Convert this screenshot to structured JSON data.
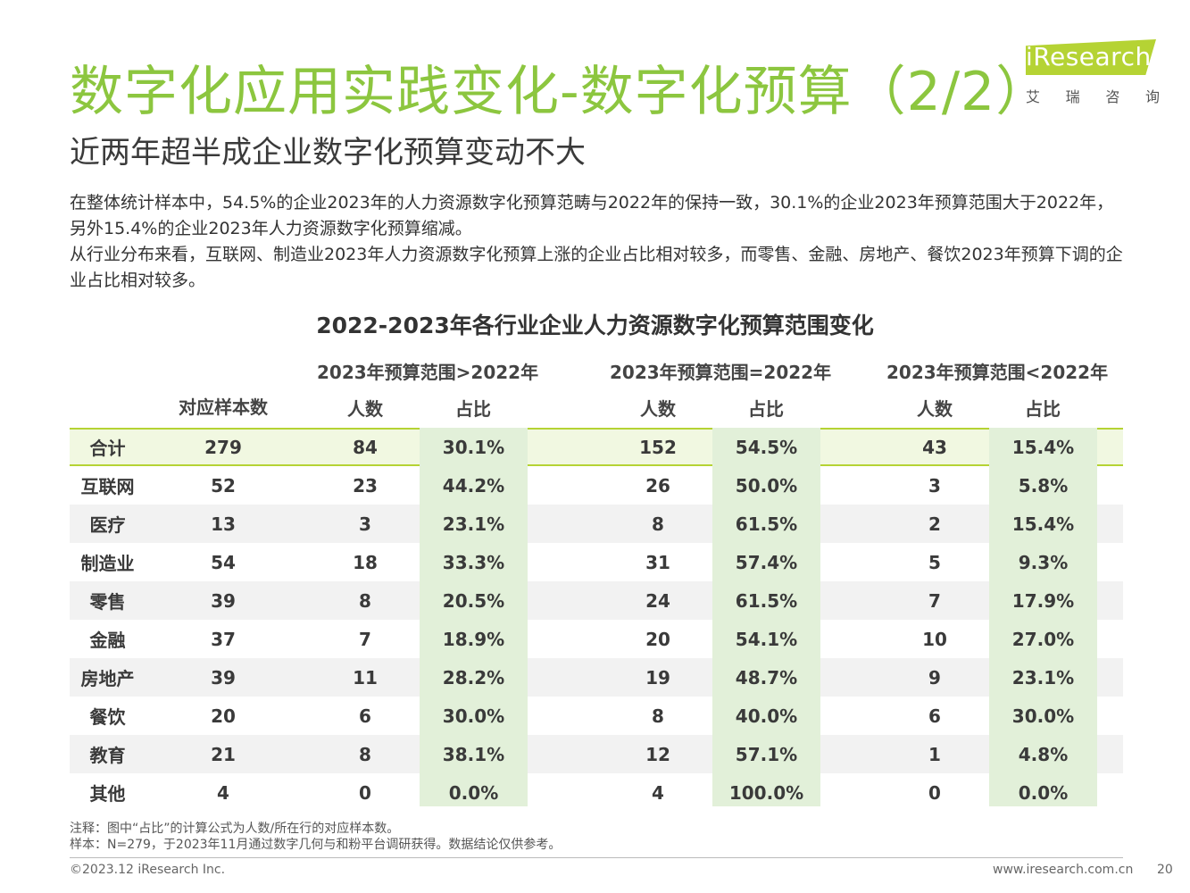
{
  "title": "数字化应用实践变化-数字化预算（2/2）",
  "subtitle": "近两年超半成企业数字化预算变动不大",
  "logo": {
    "word": "iResearch",
    "cn_chars": [
      "艾",
      "瑞",
      "咨",
      "询"
    ]
  },
  "description": [
    "在整体统计样本中，54.5%的企业2023年的人力资源数字化预算范畴与2022年的保持一致，30.1%的企业2023年预算范围大于2022年，另外15.4%的企业2023年人力资源数字化预算缩减。",
    "从行业分布来看，互联网、制造业2023年人力资源数字化预算上涨的企业占比相对较多，而零售、金融、房地产、餐饮2023年预算下调的企业占比相对较多。"
  ],
  "table": {
    "title": "2022-2023年各行业企业人力资源数字化预算范围变化",
    "sample_header": "对应样本数",
    "groups": [
      "2023年预算范围>2022年",
      "2023年预算范围=2022年",
      "2023年预算范围<2022年"
    ],
    "sub_headers": [
      "人数",
      "占比"
    ],
    "rows": [
      {
        "name": "合计",
        "sample": "279",
        "gt_count": "84",
        "gt_pct": "30.1%",
        "eq_count": "152",
        "eq_pct": "54.5%",
        "lt_count": "43",
        "lt_pct": "15.4%"
      },
      {
        "name": "互联网",
        "sample": "52",
        "gt_count": "23",
        "gt_pct": "44.2%",
        "eq_count": "26",
        "eq_pct": "50.0%",
        "lt_count": "3",
        "lt_pct": "5.8%"
      },
      {
        "name": "医疗",
        "sample": "13",
        "gt_count": "3",
        "gt_pct": "23.1%",
        "eq_count": "8",
        "eq_pct": "61.5%",
        "lt_count": "2",
        "lt_pct": "15.4%"
      },
      {
        "name": "制造业",
        "sample": "54",
        "gt_count": "18",
        "gt_pct": "33.3%",
        "eq_count": "31",
        "eq_pct": "57.4%",
        "lt_count": "5",
        "lt_pct": "9.3%"
      },
      {
        "name": "零售",
        "sample": "39",
        "gt_count": "8",
        "gt_pct": "20.5%",
        "eq_count": "24",
        "eq_pct": "61.5%",
        "lt_count": "7",
        "lt_pct": "17.9%"
      },
      {
        "name": "金融",
        "sample": "37",
        "gt_count": "7",
        "gt_pct": "18.9%",
        "eq_count": "20",
        "eq_pct": "54.1%",
        "lt_count": "10",
        "lt_pct": "27.0%"
      },
      {
        "name": "房地产",
        "sample": "39",
        "gt_count": "11",
        "gt_pct": "28.2%",
        "eq_count": "19",
        "eq_pct": "48.7%",
        "lt_count": "9",
        "lt_pct": "23.1%"
      },
      {
        "name": "餐饮",
        "sample": "20",
        "gt_count": "6",
        "gt_pct": "30.0%",
        "eq_count": "8",
        "eq_pct": "40.0%",
        "lt_count": "6",
        "lt_pct": "30.0%"
      },
      {
        "name": "教育",
        "sample": "21",
        "gt_count": "8",
        "gt_pct": "38.1%",
        "eq_count": "12",
        "eq_pct": "57.1%",
        "lt_count": "1",
        "lt_pct": "4.8%"
      },
      {
        "name": "其他",
        "sample": "4",
        "gt_count": "0",
        "gt_pct": "0.0%",
        "eq_count": "4",
        "eq_pct": "100.0%",
        "lt_count": "0",
        "lt_pct": "0.0%"
      }
    ]
  },
  "notes": [
    "注释：图中“占比”的计算公式为人数/所在行的对应样本数。",
    "样本：N=279，于2023年11月通过数字几何与和粉平台调研获得。数据结论仅供参考。"
  ],
  "footer": {
    "copyright": "©2023.12 iResearch Inc.",
    "url": "www.iresearch.com.cn",
    "page": "20"
  },
  "colors": {
    "accent": "#8cc63f",
    "logo_green": "#b5d334",
    "pct_column_bg": "#e2f0d9",
    "alt_row_bg": "#f2f2f2"
  }
}
